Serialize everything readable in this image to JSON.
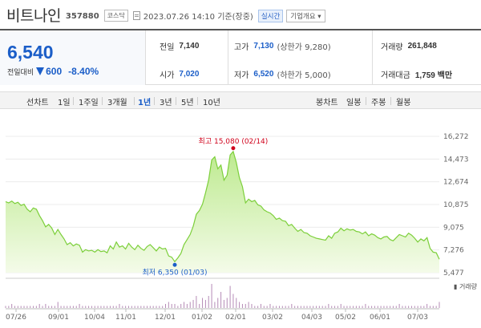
{
  "header": {
    "name": "비트나인",
    "code": "357880",
    "market": "코스닥",
    "datetime": "2023.07.26 14:10 기준(장중)",
    "realtime_label": "실시간",
    "company_label": "기업개요 ▾"
  },
  "summary": {
    "price": "6,540",
    "change_label": "전일대비",
    "change": "600",
    "change_rate": "-8.40%",
    "prev_close": {
      "label": "전일",
      "value": "7,140"
    },
    "open": {
      "label": "시가",
      "value": "7,020"
    },
    "high": {
      "label": "고가",
      "value": "7,130",
      "limit": "(상한가 9,280)"
    },
    "low": {
      "label": "저가",
      "value": "6,520",
      "limit": "(하한가 5,000)"
    },
    "volume": {
      "label": "거래량",
      "value": "261,848"
    },
    "amount": {
      "label": "거래대금",
      "value": "1,759 백만"
    },
    "colors": {
      "down": "#1b5ec8",
      "up": "#d0021b"
    }
  },
  "tabs": {
    "line_label": "선차트",
    "periods": [
      "1일",
      "1주일",
      "3개월",
      "1년",
      "3년",
      "5년",
      "10년"
    ],
    "selected": "1년",
    "candle_label": "봉차트",
    "candle_periods": [
      "일봉",
      "주봉",
      "월봉"
    ]
  },
  "chart_data": {
    "type": "area",
    "y_ticks": [
      "16,272",
      "14,473",
      "12,674",
      "10,875",
      "9,075",
      "7,276",
      "5,477"
    ],
    "y_tick_values": [
      16272,
      14473,
      12674,
      10875,
      9075,
      7276,
      5477
    ],
    "x_ticks": [
      "07/26",
      "09/01",
      "10/04",
      "11/01",
      "12/01",
      "01/02",
      "02/01",
      "03/02",
      "04/03",
      "05/02",
      "06/01",
      "07/03"
    ],
    "high_label": "최고 15,080 (02/14)",
    "low_label": "최저 6,350 (01/03)",
    "volume_label": "거래량",
    "series": [
      {
        "values": [
          11100,
          11000,
          11150,
          10950,
          11050,
          10800,
          10900,
          10500,
          10300,
          10600,
          10500,
          10000,
          9600,
          9100,
          9300,
          9000,
          8500,
          8900,
          8500,
          8150,
          7700,
          7850,
          7600,
          7750,
          7650,
          7100,
          7300,
          7200,
          7250,
          7100,
          7300,
          7150,
          7200,
          7050,
          7600,
          7350,
          7900,
          7500,
          7600,
          7350,
          7800,
          7500,
          7300,
          7650,
          7400,
          7250,
          7550,
          7700,
          7450,
          7200,
          7500,
          7350,
          7400,
          6800,
          6700,
          6350,
          6650,
          7000,
          7700,
          8100,
          8500,
          9150,
          10100,
          10400,
          10900,
          11800,
          12800,
          14400,
          14650,
          13700,
          14000,
          12800,
          13200,
          14800,
          15080,
          14200,
          13000,
          12300,
          11000,
          11300,
          11100,
          11200,
          10850,
          10750,
          10450,
          10300,
          10200,
          10000,
          9700,
          9800,
          9600,
          9550,
          9200,
          9300,
          9000,
          8750,
          8900,
          8650,
          8600,
          8400,
          8300,
          8200,
          8150,
          8100,
          8050,
          8400,
          8200,
          8600,
          8700,
          9000,
          8800,
          8950,
          8850,
          8900,
          8750,
          8700,
          8550,
          8700,
          8400,
          8550,
          8450,
          8250,
          8150,
          8300,
          8350,
          8100,
          8000,
          8250,
          8500,
          8400,
          8300,
          8600,
          8450,
          8200,
          7900,
          8150,
          8000,
          8250,
          7400,
          7100,
          7050,
          6540
        ]
      }
    ],
    "volume": [
      1,
      1,
      2,
      1,
      1,
      1,
      1,
      1,
      1,
      1,
      1,
      2,
      1,
      2,
      1,
      1,
      1,
      3,
      1,
      1,
      1,
      1,
      1,
      1,
      2,
      1,
      1,
      1,
      1,
      1,
      1,
      1,
      1,
      1,
      1,
      1,
      1,
      2,
      1,
      1,
      1,
      1,
      1,
      1,
      1,
      1,
      1,
      1,
      1,
      1,
      1,
      1,
      2,
      3,
      2,
      2,
      1,
      2,
      3,
      2,
      3,
      4,
      6,
      2,
      5,
      4,
      6,
      12,
      3,
      5,
      8,
      4,
      5,
      11,
      7,
      5,
      3,
      2,
      2,
      3,
      2,
      1,
      1,
      2,
      1,
      1,
      2,
      1,
      1,
      1,
      1,
      1,
      1,
      2,
      1,
      1,
      1,
      1,
      1,
      1,
      1,
      1,
      1,
      1,
      1,
      2,
      1,
      1,
      1,
      2,
      1,
      1,
      1,
      1,
      1,
      1,
      1,
      2,
      1,
      1,
      1,
      1,
      1,
      1,
      1,
      1,
      1,
      1,
      2,
      1,
      1,
      1,
      1,
      1,
      1,
      1,
      1,
      2,
      1,
      1,
      1,
      3
    ]
  }
}
